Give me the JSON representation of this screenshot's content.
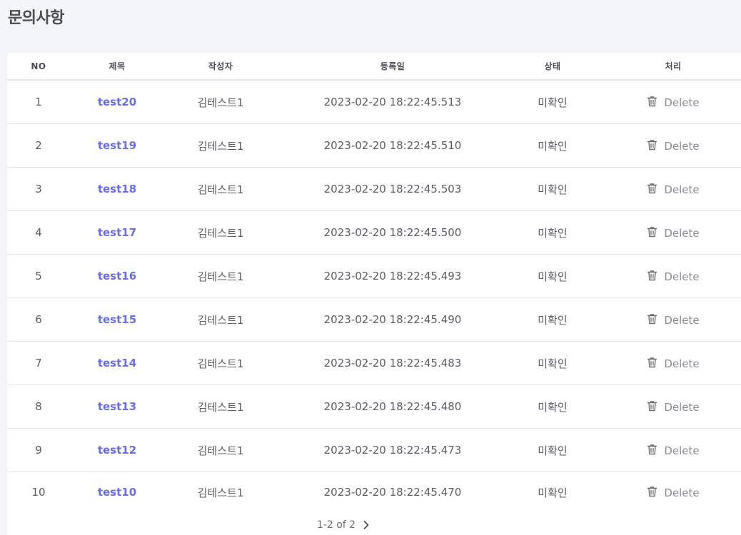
{
  "page": {
    "title": "문의사항"
  },
  "table": {
    "headers": {
      "no": "NO",
      "title": "제목",
      "author": "작성자",
      "date": "등록일",
      "status": "상태",
      "action": "처리"
    },
    "rows": [
      {
        "no": "1",
        "title": "test20",
        "author": "김테스트1",
        "date": "2023-02-20 18:22:45.513",
        "status": "미확인",
        "action": "Delete"
      },
      {
        "no": "2",
        "title": "test19",
        "author": "김테스트1",
        "date": "2023-02-20 18:22:45.510",
        "status": "미확인",
        "action": "Delete"
      },
      {
        "no": "3",
        "title": "test18",
        "author": "김테스트1",
        "date": "2023-02-20 18:22:45.503",
        "status": "미확인",
        "action": "Delete"
      },
      {
        "no": "4",
        "title": "test17",
        "author": "김테스트1",
        "date": "2023-02-20 18:22:45.500",
        "status": "미확인",
        "action": "Delete"
      },
      {
        "no": "5",
        "title": "test16",
        "author": "김테스트1",
        "date": "2023-02-20 18:22:45.493",
        "status": "미확인",
        "action": "Delete"
      },
      {
        "no": "6",
        "title": "test15",
        "author": "김테스트1",
        "date": "2023-02-20 18:22:45.490",
        "status": "미확인",
        "action": "Delete"
      },
      {
        "no": "7",
        "title": "test14",
        "author": "김테스트1",
        "date": "2023-02-20 18:22:45.483",
        "status": "미확인",
        "action": "Delete"
      },
      {
        "no": "8",
        "title": "test13",
        "author": "김테스트1",
        "date": "2023-02-20 18:22:45.480",
        "status": "미확인",
        "action": "Delete"
      },
      {
        "no": "9",
        "title": "test12",
        "author": "김테스트1",
        "date": "2023-02-20 18:22:45.473",
        "status": "미확인",
        "action": "Delete"
      },
      {
        "no": "10",
        "title": "test10",
        "author": "김테스트1",
        "date": "2023-02-20 18:22:45.470",
        "status": "미확인",
        "action": "Delete"
      }
    ]
  },
  "pagination": {
    "label": "1-2 of 2",
    "next_icon": "chevron-right-icon"
  },
  "colors": {
    "link": "#6a6ee8",
    "background": "#f4f5fa",
    "text": "#5a5d66"
  },
  "icons": {
    "row_action": "trash-icon"
  }
}
